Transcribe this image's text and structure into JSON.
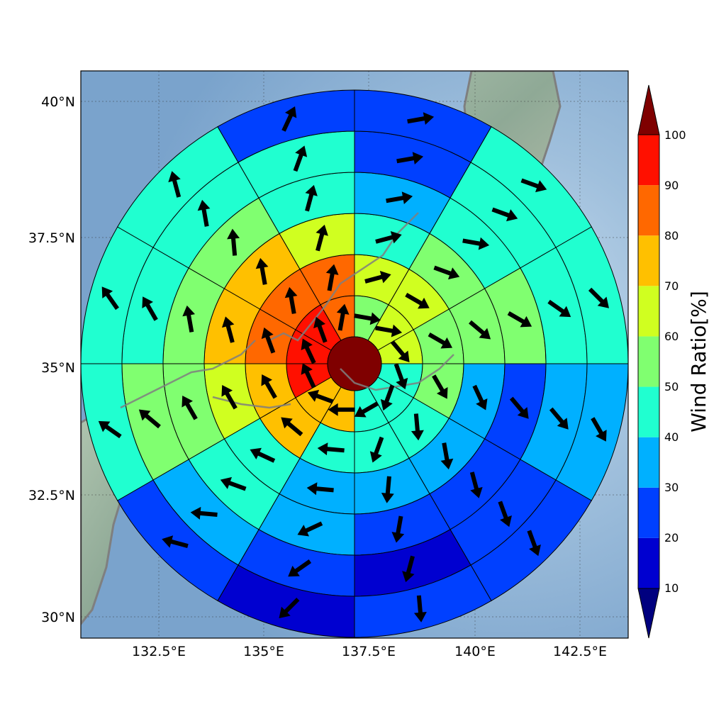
{
  "map": {
    "lon_range": [
      130.6,
      143.6
    ],
    "lat_range": [
      29.6,
      40.6
    ],
    "center": [
      137.5,
      35.0
    ],
    "lon_ticks": [
      "132.5°E",
      "135°E",
      "137.5°E",
      "140°E",
      "142.5°E"
    ],
    "lat_ticks": [
      "40°N",
      "37.5°N",
      "35°N",
      "32.5°N",
      "30°N"
    ],
    "gridlines": true
  },
  "colorbar": {
    "label": "Wind Ratio[%]",
    "ticks": [
      "10",
      "20",
      "30",
      "40",
      "50",
      "60",
      "70",
      "80",
      "90",
      "100"
    ],
    "colors": [
      "#0000d0",
      "#0040ff",
      "#00b0ff",
      "#20ffd0",
      "#80ff70",
      "#d0ff20",
      "#ffc000",
      "#ff6800",
      "#ff1000"
    ],
    "under_color": "#00007f",
    "over_color": "#7f0000"
  },
  "chart_data": {
    "type": "polar_sector_map",
    "center_disk": {
      "value": 100,
      "color": "#7f0000"
    },
    "sectors_per_ring": 12,
    "sector_start": "north, clockwise",
    "rings": [
      {
        "values": [
          55,
          65,
          65,
          45,
          45,
          45,
          75,
          75,
          95,
          95,
          95,
          85
        ],
        "wind_dir_deg": [
          100,
          100,
          140,
          160,
          200,
          240,
          270,
          290,
          335,
          335,
          340,
          10
        ]
      },
      {
        "values": [
          65,
          65,
          55,
          55,
          45,
          45,
          45,
          75,
          75,
          85,
          85,
          85
        ],
        "wind_dir_deg": [
          75,
          120,
          120,
          150,
          175,
          200,
          275,
          310,
          330,
          340,
          350,
          10
        ]
      },
      {
        "values": [
          45,
          55,
          55,
          35,
          35,
          35,
          35,
          45,
          65,
          75,
          75,
          65
        ],
        "wind_dir_deg": [
          75,
          110,
          130,
          155,
          170,
          185,
          275,
          295,
          330,
          345,
          350,
          15
        ]
      },
      {
        "values": [
          35,
          45,
          55,
          25,
          25,
          25,
          35,
          45,
          55,
          55,
          55,
          45
        ],
        "wind_dir_deg": [
          80,
          100,
          120,
          140,
          165,
          190,
          245,
          290,
          330,
          350,
          355,
          15
        ]
      },
      {
        "values": [
          25,
          45,
          45,
          35,
          25,
          15,
          25,
          35,
          55,
          45,
          45,
          45
        ],
        "wind_dir_deg": [
          80,
          110,
          125,
          140,
          160,
          195,
          235,
          275,
          310,
          330,
          350,
          20
        ]
      },
      {
        "values": [
          25,
          45,
          45,
          35,
          25,
          25,
          15,
          25,
          45,
          45,
          45,
          25
        ],
        "wind_dir_deg": [
          80,
          110,
          135,
          150,
          160,
          175,
          225,
          285,
          305,
          325,
          345,
          25
        ]
      }
    ]
  }
}
